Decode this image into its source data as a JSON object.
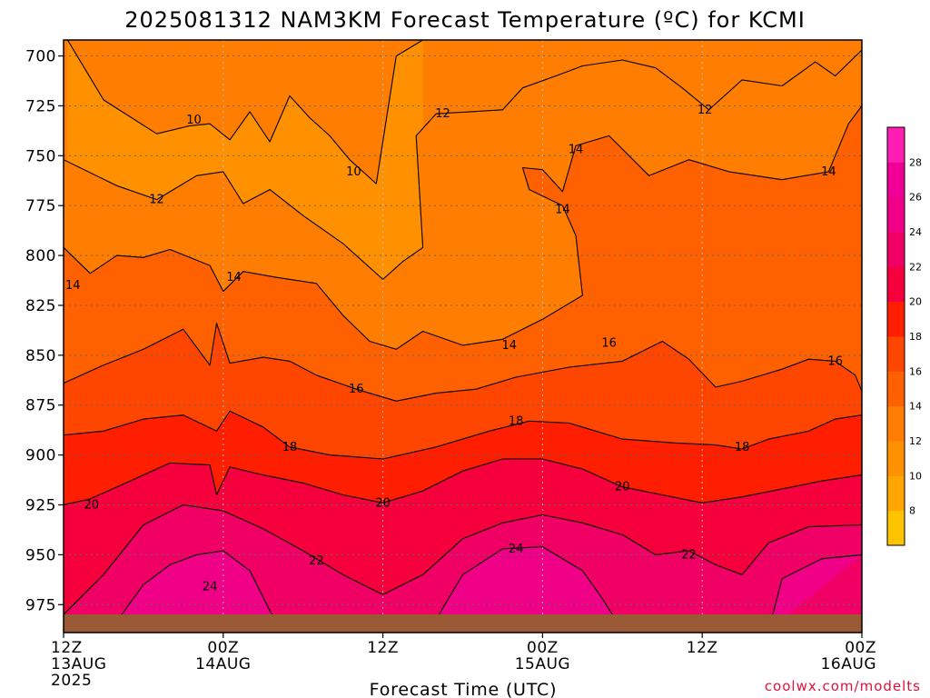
{
  "chart_data": {
    "type": "heatmap",
    "title": "2025081312 NAM3KM Forecast Temperature (ºC) for KCMI",
    "xlabel": "Forecast Time (UTC)",
    "y_axis": {
      "scale": "pressure (inverted)",
      "ylim": [
        989,
        692
      ],
      "ticks": [
        "700",
        "725",
        "750",
        "775",
        "800",
        "825",
        "850",
        "875",
        "900",
        "925",
        "950",
        "975"
      ]
    },
    "x_axis": {
      "range_hours": [
        0,
        60
      ],
      "ticks": [
        {
          "hour": 0,
          "line1": "12Z",
          "line2": "13AUG",
          "line3": "2025"
        },
        {
          "hour": 12,
          "line1": "00Z",
          "line2": "14AUG",
          "line3": ""
        },
        {
          "hour": 24,
          "line1": "12Z",
          "line2": "",
          "line3": ""
        },
        {
          "hour": 36,
          "line1": "00Z",
          "line2": "15AUG",
          "line3": ""
        },
        {
          "hour": 48,
          "line1": "12Z",
          "line2": "",
          "line3": ""
        },
        {
          "hour": 60,
          "line1": "00Z",
          "line2": "16AUG",
          "line3": ""
        }
      ]
    },
    "grid": true,
    "colorbar": {
      "position": "right",
      "labels": [
        "8",
        "10",
        "12",
        "14",
        "16",
        "18",
        "20",
        "22",
        "24",
        "26",
        "28"
      ],
      "colors": [
        "#ffc400",
        "#ffa600",
        "#ff9100",
        "#ff7d00",
        "#ff6000",
        "#ff4600",
        "#ff1e00",
        "#f5003c",
        "#f00064",
        "#f00087",
        "#f00096",
        "#ff1eb4"
      ]
    },
    "isotherms": [
      {
        "temp": 10,
        "label": "10",
        "label_points": [
          [
            9.8,
            732
          ],
          [
            21.8,
            758
          ]
        ],
        "path": [
          [
            0.3,
            692
          ],
          [
            3,
            722
          ],
          [
            7,
            739
          ],
          [
            9.5,
            735
          ],
          [
            11,
            734
          ],
          [
            12.5,
            742
          ],
          [
            14,
            728
          ],
          [
            15.5,
            743
          ],
          [
            17,
            720
          ],
          [
            18.5,
            731
          ],
          [
            20,
            740
          ],
          [
            21.5,
            752
          ],
          [
            23.5,
            764
          ],
          [
            25,
            700
          ],
          [
            27,
            692
          ]
        ]
      },
      {
        "temp": 12,
        "label": "12",
        "label_points": [
          [
            7,
            772
          ],
          [
            28.5,
            729
          ],
          [
            48.2,
            727
          ]
        ],
        "path": [
          [
            0,
            752
          ],
          [
            4,
            765
          ],
          [
            7,
            772
          ],
          [
            10,
            760
          ],
          [
            12,
            758
          ],
          [
            13.5,
            774
          ],
          [
            15.5,
            767
          ],
          [
            18,
            780
          ],
          [
            21,
            794
          ],
          [
            24,
            812
          ],
          [
            25.5,
            803
          ],
          [
            27,
            796
          ],
          [
            26.5,
            740
          ],
          [
            28,
            729
          ],
          [
            33,
            727
          ],
          [
            34.5,
            716
          ],
          [
            37,
            710
          ],
          [
            39,
            705
          ],
          [
            42,
            702
          ],
          [
            44.5,
            706
          ],
          [
            46.5,
            716
          ],
          [
            48.5,
            727
          ],
          [
            51,
            712
          ],
          [
            54,
            715
          ],
          [
            56.5,
            703
          ],
          [
            58,
            710
          ],
          [
            60,
            697
          ]
        ]
      },
      {
        "temp": 14,
        "label": "14",
        "label_points": [
          [
            0.7,
            815
          ],
          [
            12.8,
            811
          ],
          [
            38.5,
            747
          ],
          [
            37.5,
            777
          ],
          [
            33.5,
            845
          ],
          [
            57.5,
            758
          ]
        ],
        "path": [
          [
            0,
            796
          ],
          [
            2,
            809
          ],
          [
            4,
            800
          ],
          [
            6,
            801
          ],
          [
            8,
            797
          ],
          [
            11,
            805
          ],
          [
            12,
            818
          ],
          [
            13.5,
            808
          ],
          [
            16,
            811
          ],
          [
            19,
            814
          ],
          [
            21,
            830
          ],
          [
            23,
            843
          ],
          [
            25,
            847
          ],
          [
            27,
            838
          ],
          [
            30,
            845
          ],
          [
            33,
            842
          ],
          [
            36,
            832
          ],
          [
            39,
            820
          ],
          [
            38.5,
            790
          ],
          [
            37.5,
            775
          ],
          [
            35,
            767
          ],
          [
            34.5,
            756
          ],
          [
            36,
            757
          ],
          [
            37.5,
            768
          ],
          [
            38.5,
            745
          ],
          [
            41,
            740
          ],
          [
            44,
            760
          ],
          [
            47,
            752
          ],
          [
            50,
            758
          ],
          [
            54,
            762
          ],
          [
            57.5,
            758
          ],
          [
            59,
            734
          ],
          [
            60,
            725
          ]
        ]
      },
      {
        "temp": 16,
        "label": "16",
        "label_points": [
          [
            22,
            867
          ],
          [
            41,
            844
          ],
          [
            58,
            853
          ]
        ],
        "path": [
          [
            0,
            864
          ],
          [
            3,
            855
          ],
          [
            6,
            847
          ],
          [
            9,
            837
          ],
          [
            11,
            855
          ],
          [
            11.5,
            834
          ],
          [
            12.5,
            854
          ],
          [
            15,
            851
          ],
          [
            17,
            853
          ],
          [
            19,
            860
          ],
          [
            22,
            867
          ],
          [
            25,
            873
          ],
          [
            28,
            869
          ],
          [
            31,
            867
          ],
          [
            34,
            861
          ],
          [
            38,
            856
          ],
          [
            42,
            853
          ],
          [
            45,
            843
          ],
          [
            47,
            852
          ],
          [
            49,
            866
          ],
          [
            51,
            863
          ],
          [
            54,
            857
          ],
          [
            56,
            852
          ],
          [
            58,
            853
          ],
          [
            59.5,
            860
          ],
          [
            60,
            868
          ]
        ]
      },
      {
        "temp": 18,
        "label": "18",
        "label_points": [
          [
            17,
            896
          ],
          [
            34,
            883
          ],
          [
            51,
            896
          ]
        ],
        "path": [
          [
            0,
            890
          ],
          [
            3,
            888
          ],
          [
            6,
            882
          ],
          [
            9,
            880
          ],
          [
            11.5,
            888
          ],
          [
            12.5,
            878
          ],
          [
            15,
            886
          ],
          [
            17,
            896
          ],
          [
            20,
            900
          ],
          [
            24,
            902
          ],
          [
            28,
            896
          ],
          [
            32,
            888
          ],
          [
            35,
            883
          ],
          [
            38,
            884
          ],
          [
            42,
            892
          ],
          [
            46,
            894
          ],
          [
            49,
            895
          ],
          [
            51,
            897
          ],
          [
            53,
            892
          ],
          [
            56,
            888
          ],
          [
            58,
            882
          ],
          [
            60,
            880
          ]
        ]
      },
      {
        "temp": 20,
        "label": "20",
        "label_points": [
          [
            2.1,
            925
          ],
          [
            24,
            924
          ],
          [
            42,
            916
          ]
        ],
        "path": [
          [
            0,
            925
          ],
          [
            2,
            922
          ],
          [
            5,
            913
          ],
          [
            8,
            904
          ],
          [
            11,
            905
          ],
          [
            11.5,
            920
          ],
          [
            12.5,
            906
          ],
          [
            15,
            910
          ],
          [
            18,
            914
          ],
          [
            21,
            920
          ],
          [
            24,
            924
          ],
          [
            27,
            918
          ],
          [
            30,
            908
          ],
          [
            33,
            902
          ],
          [
            36,
            902
          ],
          [
            39,
            907
          ],
          [
            42,
            916
          ],
          [
            45,
            920
          ],
          [
            48,
            924
          ],
          [
            51,
            921
          ],
          [
            54,
            917
          ],
          [
            57,
            913
          ],
          [
            60,
            910
          ]
        ]
      },
      {
        "temp": 22,
        "label": "22",
        "label_points": [
          [
            19,
            953
          ],
          [
            47,
            950
          ]
        ],
        "path": [
          [
            0,
            980
          ],
          [
            3,
            960
          ],
          [
            6,
            935
          ],
          [
            9,
            925
          ],
          [
            12,
            928
          ],
          [
            15,
            937
          ],
          [
            18,
            948
          ],
          [
            21,
            960
          ],
          [
            24,
            970
          ],
          [
            27,
            960
          ],
          [
            30,
            942
          ],
          [
            33,
            934
          ],
          [
            36,
            930
          ],
          [
            39,
            934
          ],
          [
            42,
            940
          ],
          [
            44.5,
            950
          ],
          [
            47,
            948
          ],
          [
            49,
            955
          ],
          [
            51,
            960
          ],
          [
            53,
            944
          ],
          [
            56,
            936
          ],
          [
            60,
            935
          ]
        ]
      },
      {
        "temp": 24,
        "label": "24",
        "label_points": [
          [
            11,
            966
          ],
          [
            34,
            947
          ]
        ],
        "path": [
          [
            3.5,
            988
          ],
          [
            6,
            965
          ],
          [
            8,
            955
          ],
          [
            10,
            950
          ],
          [
            12,
            948
          ],
          [
            14,
            958
          ],
          [
            15.5,
            978
          ],
          [
            16.5,
            988
          ]
        ]
      },
      {
        "temp": 24,
        "label": "",
        "label_points": [],
        "path": [
          [
            27.5,
            988
          ],
          [
            30,
            960
          ],
          [
            33,
            947
          ],
          [
            36,
            946
          ],
          [
            39,
            958
          ],
          [
            40.5,
            972
          ],
          [
            42,
            988
          ]
        ]
      },
      {
        "temp": 24,
        "label": "",
        "label_points": [],
        "path": [
          [
            53,
            988
          ],
          [
            54,
            962
          ],
          [
            57,
            952
          ],
          [
            60,
            950
          ]
        ]
      }
    ],
    "series_note_colors": {
      "terrain": "#9b5a36",
      "contour_line": "#000000"
    }
  },
  "credit": "coolwx.com/modelts"
}
